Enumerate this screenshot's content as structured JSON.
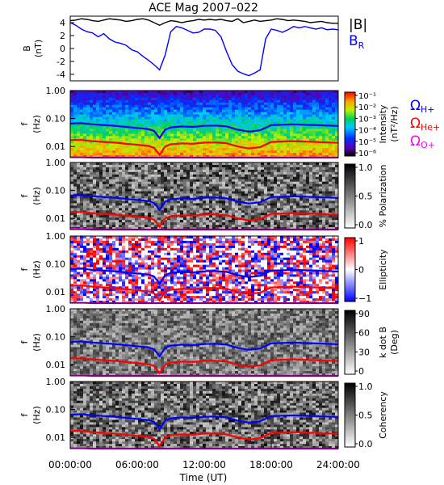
{
  "title": "ACE Mag 2007–022",
  "xaxis": {
    "label": "Time (UT)",
    "range_hours": [
      0,
      24
    ],
    "ticks": [
      "00:00:00",
      "06:00:00",
      "12:00:00",
      "18:00:00",
      "24:00:00"
    ]
  },
  "colors": {
    "btot": "#000000",
    "br": "#0000ff",
    "h_line": "#0000ff",
    "he_line": "#ff0000",
    "o_line": "#ff00ff"
  },
  "chart_data": [
    {
      "type": "line",
      "panel": "B",
      "ylabel": [
        "B",
        "(nT)"
      ],
      "ylim": [
        -5,
        5
      ],
      "yticks": [
        "4",
        "2",
        "0",
        "-2",
        "-4"
      ],
      "legend": [
        {
          "name": "|B|",
          "color": "#000000"
        },
        {
          "name": "B",
          "sub": "R",
          "color": "#0000ff"
        }
      ],
      "x": [
        0,
        0.5,
        1,
        1.5,
        2,
        2.5,
        3,
        3.5,
        4,
        4.5,
        5,
        5.5,
        6,
        6.5,
        7,
        7.5,
        8,
        8.5,
        9,
        9.5,
        10,
        10.5,
        11,
        11.5,
        12,
        12.5,
        13,
        13.5,
        14,
        14.5,
        15,
        15.5,
        16,
        16.5,
        17,
        17.5,
        18,
        18.5,
        19,
        19.5,
        20,
        20.5,
        21,
        21.5,
        22,
        22.5,
        23,
        23.5,
        24
      ],
      "series": [
        {
          "name": "|B|",
          "values": [
            4.3,
            4.4,
            4.6,
            4.5,
            4.3,
            4.2,
            4.4,
            4.6,
            4.5,
            4.4,
            4.2,
            4.3,
            4.5,
            4.6,
            4.4,
            4.0,
            3.6,
            4.0,
            4.3,
            4.2,
            4.0,
            4.2,
            4.3,
            4.5,
            4.4,
            4.5,
            4.4,
            4.5,
            4.3,
            4.2,
            4.6,
            4.0,
            4.2,
            4.4,
            4.2,
            4.3,
            4.4,
            4.6,
            4.5,
            4.3,
            4.4,
            4.3,
            4.2,
            4.0,
            4.1,
            4.2,
            4.0,
            3.9,
            3.9
          ]
        },
        {
          "name": "B_R",
          "values": [
            4.0,
            3.6,
            3.0,
            2.6,
            2.4,
            1.8,
            2.3,
            1.5,
            1.0,
            0.8,
            0.5,
            -0.2,
            -0.5,
            -1.2,
            -1.8,
            -2.5,
            -3.3,
            -1.0,
            2.6,
            3.4,
            3.2,
            2.8,
            2.4,
            2.5,
            3.0,
            3.0,
            2.8,
            1.8,
            -0.5,
            -2.5,
            -3.5,
            -3.9,
            -4.2,
            -3.8,
            -3.3,
            1.5,
            3.0,
            2.8,
            2.5,
            2.9,
            3.4,
            3.2,
            3.4,
            3.2,
            3.0,
            3.2,
            2.9,
            3.0,
            2.9
          ]
        }
      ]
    },
    {
      "type": "heatmap",
      "panel": "intensity",
      "ylabel": [
        "f",
        "(Hz)"
      ],
      "ylim": [
        0.004,
        1.0
      ],
      "yticks": [
        "1.00",
        "0.10",
        "0.01"
      ],
      "colorbar": {
        "label": [
          "Intensity",
          "(nT²/Hz)"
        ],
        "scale": "log",
        "range": [
          1e-06,
          0.1
        ],
        "ticks": [
          "10⁻¹",
          "10⁻²",
          "10⁻³",
          "10⁻⁴",
          "10⁻⁵",
          "10⁻⁶"
        ]
      }
    },
    {
      "type": "heatmap",
      "panel": "polarization",
      "ylabel": [
        "f",
        "(Hz)"
      ],
      "ylim": [
        0.004,
        1.0
      ],
      "yticks": [
        "1.00",
        "0.10",
        "0.01"
      ],
      "colorbar": {
        "label": [
          "% Polarization"
        ],
        "range": [
          0,
          1
        ],
        "ticks": [
          "1.0",
          "0.5",
          "0.0"
        ]
      }
    },
    {
      "type": "heatmap",
      "panel": "ellipticity",
      "ylabel": [
        "f",
        "(Hz)"
      ],
      "ylim": [
        0.004,
        1.0
      ],
      "yticks": [
        "1.00",
        "0.10",
        "0.01"
      ],
      "colorbar": {
        "label": [
          "Ellipticity"
        ],
        "range": [
          -1,
          1
        ],
        "ticks": [
          "1",
          "0",
          "−1"
        ]
      }
    },
    {
      "type": "heatmap",
      "panel": "kdotb",
      "ylabel": [
        "f",
        "(Hz)"
      ],
      "ylim": [
        0.004,
        1.0
      ],
      "yticks": [
        "1.00",
        "0.10",
        "0.01"
      ],
      "colorbar": {
        "label": [
          "k dot B",
          "(Deg)"
        ],
        "range": [
          0,
          90
        ],
        "ticks": [
          "90",
          "60",
          "30",
          "0"
        ]
      }
    },
    {
      "type": "heatmap",
      "panel": "coherency",
      "ylabel": [
        "f",
        "(Hz)"
      ],
      "ylim": [
        0.004,
        1.0
      ],
      "yticks": [
        "1.00",
        "0.10",
        "0.01"
      ],
      "colorbar": {
        "label": [
          "Coherency"
        ],
        "range": [
          0,
          1
        ],
        "ticks": [
          "1.0",
          "0.5",
          "0.0"
        ]
      }
    }
  ],
  "gyro_legend": [
    {
      "symbol": "Ω",
      "sub": "H+",
      "color": "#0000ff"
    },
    {
      "symbol": "Ω",
      "sub": "He+",
      "color": "#ff0000"
    },
    {
      "symbol": "Ω",
      "sub": "O+",
      "color": "#ff00ff"
    }
  ],
  "gyro_lines": {
    "x": [
      0,
      1,
      2,
      3,
      4,
      5,
      6,
      7,
      7.5,
      8,
      8.5,
      9,
      10,
      11,
      12,
      13,
      14,
      15,
      16,
      17,
      18,
      19,
      20,
      21,
      22,
      23,
      24
    ],
    "H_plus_hz": [
      0.066,
      0.068,
      0.062,
      0.058,
      0.055,
      0.05,
      0.046,
      0.042,
      0.036,
      0.02,
      0.04,
      0.048,
      0.052,
      0.05,
      0.055,
      0.056,
      0.052,
      0.04,
      0.034,
      0.038,
      0.058,
      0.06,
      0.062,
      0.06,
      0.058,
      0.056,
      0.054
    ],
    "He_plus_hz": [
      0.017,
      0.017,
      0.0155,
      0.0145,
      0.0138,
      0.0125,
      0.0115,
      0.0105,
      0.009,
      0.005,
      0.01,
      0.012,
      0.013,
      0.0125,
      0.0138,
      0.014,
      0.013,
      0.01,
      0.0085,
      0.0095,
      0.0145,
      0.015,
      0.0155,
      0.015,
      0.0145,
      0.014,
      0.0135
    ],
    "O_plus_hz": [
      0.0042,
      0.0042,
      0.004,
      0.004,
      0.004,
      0.004,
      0.004,
      0.004,
      0.004,
      0.004,
      0.004,
      0.004,
      0.004,
      0.004,
      0.004,
      0.004,
      0.004,
      0.004,
      0.004,
      0.004,
      0.004,
      0.004,
      0.004,
      0.004,
      0.004,
      0.004,
      0.004
    ]
  }
}
